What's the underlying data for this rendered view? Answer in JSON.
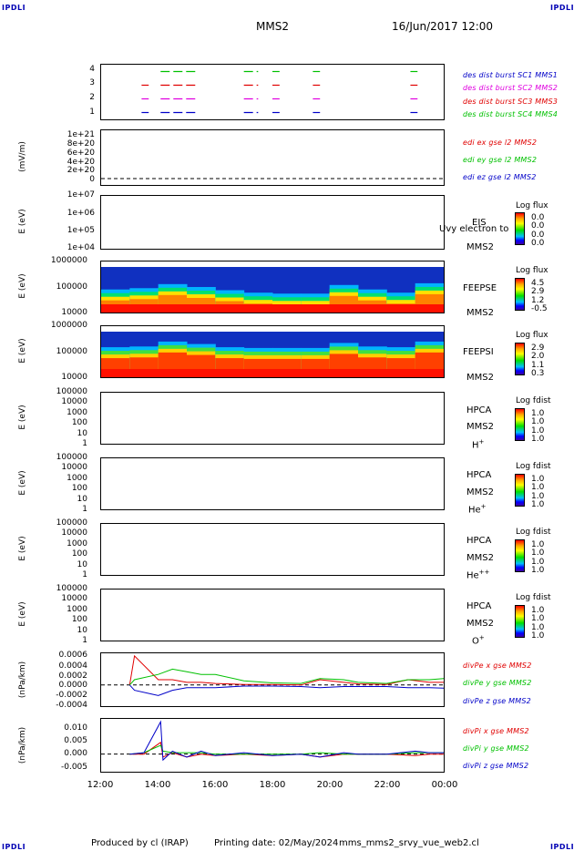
{
  "header": {
    "corner_label": "IPDLI",
    "spacecraft": "MMS2",
    "date": "16/Jun/2017 12:00"
  },
  "footer": {
    "produced_by": "Produced by cl (IRAP)",
    "printing_date": "Printing date: 02/May/2024",
    "script": "mms_mms2_srvy_vue_web2.cl"
  },
  "x_axis": {
    "ticks": [
      "12:00",
      "14:00",
      "16:00",
      "18:00",
      "20:00",
      "22:00",
      "00:00"
    ]
  },
  "panels": {
    "burst": {
      "ticks": [
        "4",
        "3",
        "2",
        "1"
      ],
      "legend": [
        {
          "text": "des dist burst SC1 MMS1",
          "color": "#0000c8"
        },
        {
          "text": "des dist burst SC2 MMS2",
          "color": "#e000e0"
        },
        {
          "text": "des dist burst SC3 MMS3",
          "color": "#e00000"
        },
        {
          "text": "des dist burst SC4 MMS4",
          "color": "#00c000"
        }
      ]
    },
    "edi": {
      "ylabel": "(mV/m)",
      "ticks": [
        "1e+21",
        "8e+20",
        "6e+20",
        "4e+20",
        "2e+20",
        "0"
      ],
      "legend": [
        {
          "text": "edi ex gse l2 MMS2",
          "color": "#e00000"
        },
        {
          "text": "edi ey gse l2 MMS2",
          "color": "#00c000"
        },
        {
          "text": "edi ez gse l2 MMS2",
          "color": "#0000c8"
        }
      ]
    },
    "eis": {
      "ylabel": "E (eV)",
      "ticks": [
        "1e+07",
        "1e+06",
        "1e+05",
        "1e+04"
      ],
      "inst": "EIS",
      "overlay": "Uvy electron to",
      "sc": "MMS2",
      "cb_title": "Log flux",
      "cb_values": [
        "0.0",
        "0.0",
        "0.0",
        "0.0"
      ]
    },
    "feepse": {
      "ylabel": "E (eV)",
      "ticks": [
        "1000000",
        "100000",
        "10000"
      ],
      "inst": "FEEPSE",
      "sc": "MMS2",
      "cb_title": "Log flux",
      "cb_values": [
        "4.5",
        "2.9",
        "1.2",
        "-0.5"
      ]
    },
    "feepsi": {
      "ylabel": "E (eV)",
      "ticks": [
        "1000000",
        "100000",
        "10000"
      ],
      "inst": "FEEPSI",
      "sc": "MMS2",
      "cb_title": "Log flux",
      "cb_values": [
        "2.9",
        "2.0",
        "1.1",
        "0.3"
      ]
    },
    "hpca_h": {
      "ylabel": "E (eV)",
      "ticks": [
        "100000",
        "10000",
        "1000",
        "100",
        "10",
        "1"
      ],
      "inst": "HPCA",
      "sc": "MMS2",
      "species": "H",
      "species_sup": "+",
      "cb_title": "Log fdist",
      "cb_values": [
        "1.0",
        "1.0",
        "1.0",
        "1.0"
      ]
    },
    "hpca_he": {
      "ylabel": "E (eV)",
      "ticks": [
        "100000",
        "10000",
        "1000",
        "100",
        "10",
        "1"
      ],
      "inst": "HPCA",
      "sc": "MMS2",
      "species": "He",
      "species_sup": "+",
      "cb_title": "Log fdist",
      "cb_values": [
        "1.0",
        "1.0",
        "1.0",
        "1.0"
      ]
    },
    "hpca_hepp": {
      "ylabel": "E (eV)",
      "ticks": [
        "100000",
        "10000",
        "1000",
        "100",
        "10",
        "1"
      ],
      "inst": "HPCA",
      "sc": "MMS2",
      "species": "He",
      "species_sup": "++",
      "cb_title": "Log fdist",
      "cb_values": [
        "1.0",
        "1.0",
        "1.0",
        "1.0"
      ]
    },
    "hpca_o": {
      "ylabel": "E (eV)",
      "ticks": [
        "100000",
        "10000",
        "1000",
        "100",
        "10",
        "1"
      ],
      "inst": "HPCA",
      "sc": "MMS2",
      "species": "O",
      "species_sup": "+",
      "cb_title": "Log fdist",
      "cb_values": [
        "1.0",
        "1.0",
        "1.0",
        "1.0"
      ]
    },
    "divpe": {
      "ylabel": "(nPa/km)",
      "ticks": [
        "0.0006",
        "0.0004",
        "0.0002",
        "0.0000",
        "-0.0002",
        "-0.0004"
      ],
      "legend": [
        {
          "text": "divPe x gse MMS2",
          "color": "#e00000"
        },
        {
          "text": "divPe y gse MMS2",
          "color": "#00c000"
        },
        {
          "text": "divPe z gse MMS2",
          "color": "#0000c8"
        }
      ]
    },
    "divpi": {
      "ylabel": "(nPa/km)",
      "ticks": [
        "0.010",
        "0.005",
        "0.000",
        "-0.005"
      ],
      "legend": [
        {
          "text": "divPi x gse MMS2",
          "color": "#e00000"
        },
        {
          "text": "divPi y gse MMS2",
          "color": "#00c000"
        },
        {
          "text": "divPi z gse MMS2",
          "color": "#0000c8"
        }
      ]
    }
  },
  "chart_data": [
    {
      "type": "line",
      "title": "des dist burst",
      "x_range": [
        "12:00",
        "00:00"
      ],
      "ylim": [
        0.5,
        4.5
      ],
      "series": [
        {
          "name": "des dist burst SC1 MMS1",
          "level": 1,
          "intervals": [
            [
              "13:25",
              "13:40"
            ],
            [
              "14:05",
              "15:20"
            ],
            [
              "17:00",
              "17:30"
            ],
            [
              "18:00",
              "18:15"
            ],
            [
              "19:25",
              "19:40"
            ],
            [
              "22:50",
              "23:05"
            ]
          ]
        },
        {
          "name": "des dist burst SC2 MMS2",
          "level": 2,
          "intervals": [
            [
              "13:25",
              "13:40"
            ],
            [
              "14:05",
              "15:20"
            ],
            [
              "17:00",
              "17:30"
            ],
            [
              "18:00",
              "18:15"
            ],
            [
              "19:25",
              "19:40"
            ],
            [
              "22:50",
              "23:05"
            ]
          ]
        },
        {
          "name": "des dist burst SC3 MMS3",
          "level": 3,
          "intervals": [
            [
              "13:25",
              "13:40"
            ],
            [
              "14:05",
              "15:20"
            ],
            [
              "17:00",
              "17:30"
            ],
            [
              "18:00",
              "18:15"
            ],
            [
              "19:25",
              "19:40"
            ],
            [
              "22:50",
              "23:05"
            ]
          ]
        },
        {
          "name": "des dist burst SC4 MMS4",
          "level": 4,
          "intervals": [
            [
              "14:05",
              "15:20"
            ],
            [
              "17:00",
              "17:30"
            ],
            [
              "18:00",
              "18:15"
            ],
            [
              "19:25",
              "19:40"
            ],
            [
              "22:50",
              "23:05"
            ]
          ]
        }
      ]
    },
    {
      "type": "line",
      "title": "edi e gse l2 MMS2",
      "ylim": [
        0,
        1e+21
      ],
      "series": [
        {
          "name": "edi ex gse l2 MMS2",
          "values": []
        },
        {
          "name": "edi ey gse l2 MMS2",
          "values": []
        },
        {
          "name": "edi ez gse l2 MMS2",
          "values": []
        }
      ]
    },
    {
      "type": "heatmap",
      "title": "FEEPSE",
      "ylabel": "E (eV)",
      "ylim": [
        10000,
        1000000
      ],
      "y_scale": "log",
      "colorbar": {
        "title": "Log flux",
        "ticks": [
          4.5,
          2.9,
          1.2,
          -0.5
        ]
      },
      "x": [
        "12:00",
        "13:00",
        "14:00",
        "15:00",
        "16:00",
        "17:00",
        "18:00",
        "19:00",
        "20:00",
        "21:00",
        "22:00",
        "23:00",
        "00:00"
      ],
      "energy_of_high_flux_edge_eV": [
        80000,
        90000,
        130000,
        100000,
        75000,
        60000,
        55000,
        55000,
        120000,
        80000,
        60000,
        140000,
        130000
      ]
    },
    {
      "type": "heatmap",
      "title": "FEEPSI",
      "ylabel": "E (eV)",
      "ylim": [
        10000,
        1000000
      ],
      "y_scale": "log",
      "colorbar": {
        "title": "Log flux",
        "ticks": [
          2.9,
          2.0,
          1.1,
          0.3
        ]
      },
      "x": [
        "12:00",
        "13:00",
        "14:00",
        "15:00",
        "16:00",
        "17:00",
        "18:00",
        "19:00",
        "20:00",
        "21:00",
        "22:00",
        "23:00",
        "00:00"
      ],
      "energy_of_high_flux_edge_eV": [
        150000,
        160000,
        250000,
        200000,
        150000,
        140000,
        140000,
        140000,
        220000,
        160000,
        150000,
        250000,
        240000
      ]
    },
    {
      "type": "line",
      "title": "divPe gse MMS2",
      "ylabel": "(nPa/km)",
      "ylim": [
        -0.0004,
        0.0006
      ],
      "x": [
        "13:00",
        "13:10",
        "14:00",
        "14:30",
        "15:00",
        "15:30",
        "16:00",
        "17:00",
        "18:00",
        "19:00",
        "19:40",
        "20:30",
        "21:00",
        "22:00",
        "22:45",
        "23:30",
        "00:00"
      ],
      "series": [
        {
          "name": "divPe x gse MMS2",
          "values": [
            0,
            0.00055,
            0.0001,
            0.0001,
            5e-05,
            5e-05,
            3e-05,
            1e-05,
            1e-05,
            0.0,
            0.0001,
            5e-05,
            2e-05,
            1e-05,
            0.0001,
            5e-05,
            5e-05
          ]
        },
        {
          "name": "divPe y gse MMS2",
          "values": [
            0,
            0.0001,
            0.0002,
            0.0003,
            0.00025,
            0.0002,
            0.0002,
            8e-05,
            4e-05,
            3e-05,
            0.00012,
            0.0001,
            5e-05,
            3e-05,
            0.0001,
            0.0001,
            0.00012
          ]
        },
        {
          "name": "divPe z gse MMS2",
          "values": [
            0,
            -0.0001,
            -0.0002,
            -0.0001,
            -5e-05,
            -5e-05,
            -5e-05,
            -2e-05,
            -2e-05,
            -3e-05,
            -5e-05,
            -3e-05,
            -3e-05,
            -3e-05,
            -5e-05,
            -5e-05,
            -6e-05
          ]
        }
      ]
    },
    {
      "type": "line",
      "title": "divPi gse MMS2",
      "ylabel": "(nPa/km)",
      "ylim": [
        -0.006,
        0.012
      ],
      "x": [
        "13:00",
        "13:30",
        "14:05",
        "14:10",
        "14:30",
        "15:00",
        "15:30",
        "16:00",
        "17:00",
        "18:00",
        "19:00",
        "19:40",
        "20:30",
        "21:00",
        "22:00",
        "23:00",
        "23:30",
        "00:00"
      ],
      "series": [
        {
          "name": "divPi x gse MMS2",
          "values": [
            0,
            0.0,
            0.004,
            -0.001,
            0.0005,
            -0.001,
            0.0,
            -0.0005,
            0.0,
            -0.0005,
            0.0,
            -0.001,
            0.0,
            0.0,
            0.0,
            -0.0005,
            0.0,
            0.0
          ]
        },
        {
          "name": "divPi y gse MMS2",
          "values": [
            0,
            0.0005,
            0.003,
            0.001,
            0.0005,
            0.0005,
            0.0005,
            0.0,
            0.0,
            0.0,
            0.0,
            0.0005,
            0.0,
            0.0,
            0.0,
            0.0005,
            0.0005,
            0.0005
          ]
        },
        {
          "name": "divPi z gse MMS2",
          "values": [
            0,
            0.0005,
            0.011,
            -0.002,
            0.001,
            -0.001,
            0.001,
            -0.0005,
            0.0005,
            -0.0005,
            0.0,
            -0.001,
            0.0005,
            0.0,
            0.0,
            0.001,
            0.0005,
            0.0005
          ]
        }
      ]
    }
  ]
}
